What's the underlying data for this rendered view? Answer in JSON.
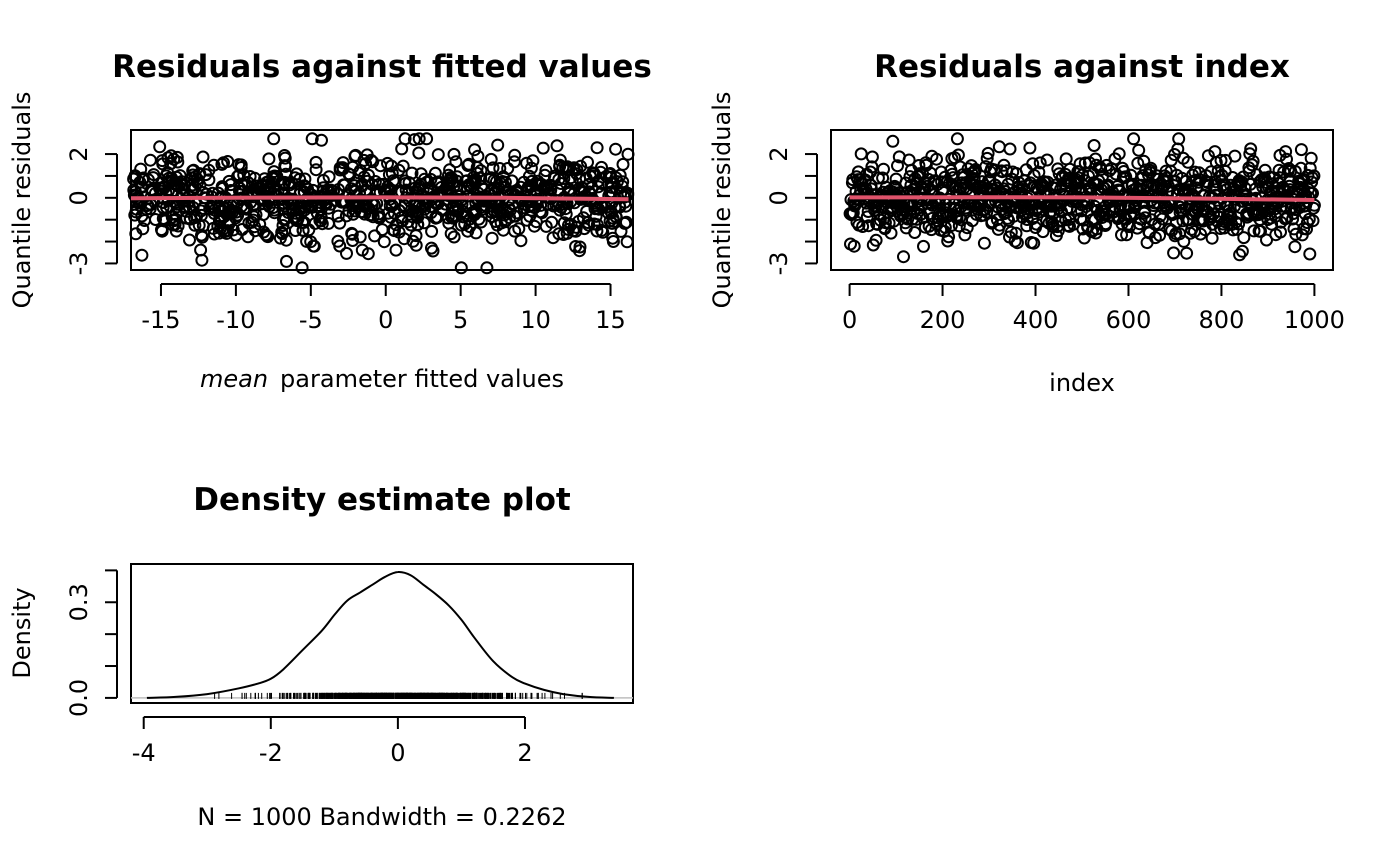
{
  "chart_data": [
    {
      "type": "scatter",
      "title": "Residuals against fitted values",
      "xlabel_italic": "mean",
      "xlabel_rest": "parameter fitted values",
      "ylabel": "Quantile residuals",
      "xlim": [
        -17,
        16.5
      ],
      "ylim": [
        -3.3,
        3.1
      ],
      "xticks": [
        -15,
        -10,
        -5,
        0,
        5,
        10,
        15
      ],
      "xtick_labels": [
        "-15",
        "-10",
        "-5",
        "0",
        "5",
        "10",
        "15"
      ],
      "yticks": [
        -3,
        -2,
        -1,
        0,
        1,
        2
      ],
      "ytick_labels": [
        "-3",
        "",
        "",
        "0",
        "",
        "2"
      ],
      "n_points": 1000,
      "smooth": {
        "x": [
          -17,
          -8,
          0,
          8,
          16.2
        ],
        "y": [
          -0.02,
          0.01,
          0.02,
          0.0,
          -0.07
        ]
      },
      "grid": false
    },
    {
      "type": "scatter",
      "title": "Residuals against index",
      "xlabel": "index",
      "ylabel": "Quantile residuals",
      "xlim": [
        -40,
        1040
      ],
      "ylim": [
        -3.3,
        3.1
      ],
      "xticks": [
        0,
        200,
        400,
        600,
        800,
        1000
      ],
      "xtick_labels": [
        "0",
        "200",
        "400",
        "600",
        "800",
        "1000"
      ],
      "yticks": [
        -3,
        -2,
        -1,
        0,
        1,
        2
      ],
      "ytick_labels": [
        "-3",
        "",
        "",
        "0",
        "",
        "2"
      ],
      "n_points": 1000,
      "smooth": {
        "x": [
          0,
          250,
          500,
          750,
          1000
        ],
        "y": [
          0.02,
          0.03,
          0.02,
          -0.03,
          -0.1
        ]
      },
      "grid": false
    },
    {
      "type": "line",
      "title": "Density estimate plot",
      "xlabel": "N = 1000   Bandwidth = 0.2262",
      "ylabel": "Density",
      "xlim": [
        -4.2,
        3.7
      ],
      "ylim": [
        -0.016,
        0.42
      ],
      "xticks": [
        -4,
        -2,
        0,
        2
      ],
      "xtick_labels": [
        "-4",
        "-2",
        "0",
        "2"
      ],
      "yticks": [
        0,
        0.1,
        0.2,
        0.3,
        0.4
      ],
      "ytick_labels": [
        "0.0",
        "",
        "",
        "0.3",
        ""
      ],
      "x": [
        -3.95,
        -3.5,
        -3.0,
        -2.5,
        -2.2,
        -2.0,
        -1.8,
        -1.5,
        -1.2,
        -1.0,
        -0.8,
        -0.6,
        -0.4,
        -0.2,
        0.0,
        0.2,
        0.4,
        0.6,
        0.8,
        1.0,
        1.2,
        1.5,
        1.8,
        2.0,
        2.3,
        2.6,
        3.0,
        3.4
      ],
      "y": [
        0.0,
        0.003,
        0.012,
        0.03,
        0.045,
        0.06,
        0.09,
        0.15,
        0.21,
        0.26,
        0.305,
        0.33,
        0.355,
        0.38,
        0.395,
        0.385,
        0.355,
        0.325,
        0.29,
        0.245,
        0.19,
        0.115,
        0.065,
        0.045,
        0.025,
        0.012,
        0.003,
        0.0
      ],
      "rug_n": 1000,
      "grid": false
    }
  ]
}
